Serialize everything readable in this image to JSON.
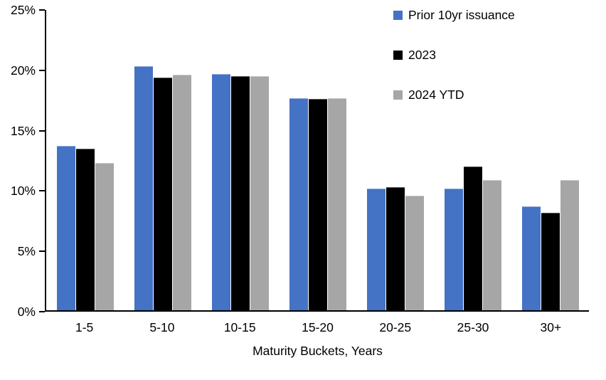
{
  "chart_data": {
    "type": "bar",
    "title": "",
    "categories": [
      "1-5",
      "5-10",
      "10-15",
      "15-20",
      "20-25",
      "25-30",
      "30+"
    ],
    "series": [
      {
        "name": "Prior 10yr issuance",
        "color": "#4472C4",
        "border_color": "#8FAADC",
        "values": [
          13.6,
          20.2,
          19.6,
          17.6,
          10.1,
          10.1,
          8.6
        ]
      },
      {
        "name": "2023",
        "color": "#000000",
        "border_color": "#595959",
        "values": [
          13.4,
          19.3,
          19.4,
          17.5,
          10.2,
          11.9,
          8.1
        ]
      },
      {
        "name": "2024 YTD",
        "color": "#A6A6A6",
        "border_color": "#C9C9C9",
        "values": [
          12.2,
          19.5,
          19.4,
          17.6,
          9.5,
          10.8,
          10.8
        ]
      }
    ],
    "xlabel": "Maturity Buckets, Years",
    "ylabel": "",
    "ylim": [
      0,
      25
    ],
    "yticks": [
      0,
      5,
      10,
      15,
      20,
      25
    ],
    "ytick_suffix": "%",
    "legend_position": "top-right",
    "grid": false,
    "axis_color": "#000000",
    "background_color": "#FFFFFF"
  }
}
